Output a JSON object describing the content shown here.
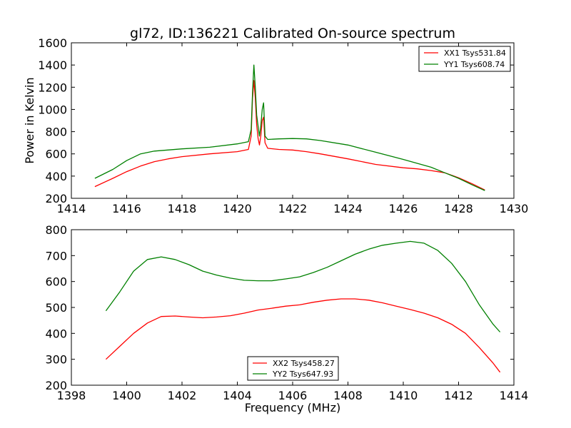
{
  "title": "gl72, ID:136221 Calibrated On-source spectrum",
  "chart_data": [
    {
      "type": "line",
      "xlim": [
        1414,
        1430
      ],
      "ylim": [
        200,
        1600
      ],
      "xticks": [
        1414,
        1416,
        1418,
        1420,
        1422,
        1424,
        1426,
        1428,
        1430
      ],
      "yticks": [
        200,
        400,
        600,
        800,
        1000,
        1200,
        1400,
        1600
      ],
      "xlabel": "",
      "ylabel": "Power in Kelvin",
      "legend_position": "top-right",
      "series": [
        {
          "name": "XX1 Tsys531.84",
          "color": "#ff0000",
          "points": [
            [
              1414.85,
              305
            ],
            [
              1415.5,
              380
            ],
            [
              1416,
              440
            ],
            [
              1416.5,
              490
            ],
            [
              1417,
              530
            ],
            [
              1417.5,
              555
            ],
            [
              1418,
              575
            ],
            [
              1419,
              600
            ],
            [
              1420,
              620
            ],
            [
              1420.4,
              640
            ],
            [
              1420.5,
              760
            ],
            [
              1420.55,
              1100
            ],
            [
              1420.6,
              1260
            ],
            [
              1420.65,
              1100
            ],
            [
              1420.7,
              860
            ],
            [
              1420.75,
              740
            ],
            [
              1420.8,
              680
            ],
            [
              1420.85,
              760
            ],
            [
              1420.9,
              900
            ],
            [
              1420.95,
              930
            ],
            [
              1421,
              700
            ],
            [
              1421.1,
              650
            ],
            [
              1421.5,
              640
            ],
            [
              1422,
              635
            ],
            [
              1422.5,
              620
            ],
            [
              1423,
              600
            ],
            [
              1424,
              555
            ],
            [
              1425,
              505
            ],
            [
              1426,
              475
            ],
            [
              1426.5,
              465
            ],
            [
              1427,
              450
            ],
            [
              1427.5,
              430
            ],
            [
              1428,
              385
            ],
            [
              1428.5,
              330
            ],
            [
              1428.95,
              275
            ]
          ]
        },
        {
          "name": "YY1 Tsys608.74",
          "color": "#008000",
          "points": [
            [
              1414.85,
              380
            ],
            [
              1415.5,
              460
            ],
            [
              1416,
              540
            ],
            [
              1416.5,
              600
            ],
            [
              1417,
              625
            ],
            [
              1418,
              645
            ],
            [
              1419,
              660
            ],
            [
              1420,
              690
            ],
            [
              1420.4,
              710
            ],
            [
              1420.5,
              820
            ],
            [
              1420.55,
              1150
            ],
            [
              1420.6,
              1400
            ],
            [
              1420.65,
              1200
            ],
            [
              1420.7,
              950
            ],
            [
              1420.75,
              850
            ],
            [
              1420.8,
              760
            ],
            [
              1420.85,
              850
            ],
            [
              1420.9,
              1000
            ],
            [
              1420.95,
              1060
            ],
            [
              1421,
              760
            ],
            [
              1421.1,
              730
            ],
            [
              1421.5,
              735
            ],
            [
              1422,
              738
            ],
            [
              1422.5,
              735
            ],
            [
              1423,
              720
            ],
            [
              1424,
              680
            ],
            [
              1425,
              615
            ],
            [
              1426,
              550
            ],
            [
              1427,
              480
            ],
            [
              1427.5,
              430
            ],
            [
              1428,
              380
            ],
            [
              1428.5,
              320
            ],
            [
              1428.95,
              270
            ]
          ]
        }
      ]
    },
    {
      "type": "line",
      "xlim": [
        1398,
        1414
      ],
      "ylim": [
        200,
        800
      ],
      "xticks": [
        1398,
        1400,
        1402,
        1404,
        1406,
        1408,
        1410,
        1412,
        1414
      ],
      "yticks": [
        200,
        300,
        400,
        500,
        600,
        700,
        800
      ],
      "xlabel": "Frequency (MHz)",
      "ylabel": "",
      "legend_position": "bottom-center",
      "series": [
        {
          "name": "XX2 Tsys458.27",
          "color": "#ff0000",
          "points": [
            [
              1399.25,
              300
            ],
            [
              1399.75,
              350
            ],
            [
              1400.25,
              400
            ],
            [
              1400.75,
              440
            ],
            [
              1401.25,
              465
            ],
            [
              1401.75,
              467
            ],
            [
              1402.25,
              463
            ],
            [
              1402.75,
              460
            ],
            [
              1403.25,
              463
            ],
            [
              1403.75,
              468
            ],
            [
              1404.25,
              478
            ],
            [
              1404.75,
              490
            ],
            [
              1405.25,
              497
            ],
            [
              1405.75,
              505
            ],
            [
              1406.25,
              510
            ],
            [
              1406.75,
              520
            ],
            [
              1407.25,
              528
            ],
            [
              1407.75,
              533
            ],
            [
              1408.25,
              533
            ],
            [
              1408.75,
              528
            ],
            [
              1409.25,
              518
            ],
            [
              1409.75,
              505
            ],
            [
              1410.25,
              492
            ],
            [
              1410.75,
              478
            ],
            [
              1411.25,
              460
            ],
            [
              1411.75,
              435
            ],
            [
              1412.25,
              400
            ],
            [
              1412.75,
              345
            ],
            [
              1413.25,
              285
            ],
            [
              1413.5,
              250
            ]
          ]
        },
        {
          "name": "YY2 Tsys647.93",
          "color": "#008000",
          "points": [
            [
              1399.25,
              487
            ],
            [
              1399.75,
              560
            ],
            [
              1400.25,
              640
            ],
            [
              1400.75,
              685
            ],
            [
              1401.25,
              695
            ],
            [
              1401.75,
              685
            ],
            [
              1402.25,
              665
            ],
            [
              1402.75,
              640
            ],
            [
              1403.25,
              625
            ],
            [
              1403.75,
              613
            ],
            [
              1404.25,
              605
            ],
            [
              1404.75,
              603
            ],
            [
              1405.25,
              603
            ],
            [
              1405.75,
              610
            ],
            [
              1406.25,
              618
            ],
            [
              1406.75,
              635
            ],
            [
              1407.25,
              655
            ],
            [
              1407.75,
              680
            ],
            [
              1408.25,
              705
            ],
            [
              1408.75,
              725
            ],
            [
              1409.25,
              740
            ],
            [
              1409.75,
              748
            ],
            [
              1410.25,
              755
            ],
            [
              1410.75,
              748
            ],
            [
              1411.25,
              720
            ],
            [
              1411.75,
              670
            ],
            [
              1412.25,
              600
            ],
            [
              1412.75,
              510
            ],
            [
              1413.25,
              435
            ],
            [
              1413.5,
              405
            ]
          ]
        }
      ]
    }
  ]
}
